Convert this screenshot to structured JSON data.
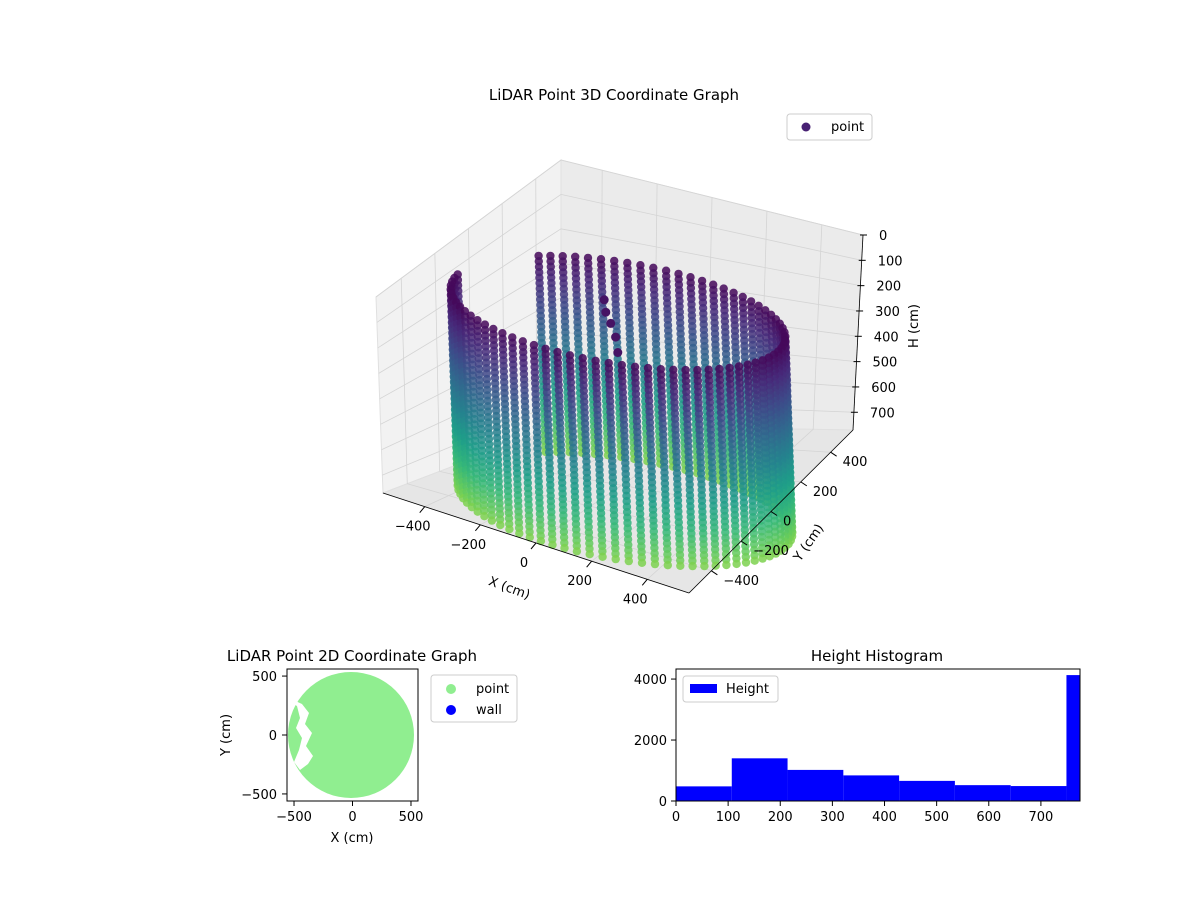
{
  "chart_data": [
    {
      "type": "scatter3d",
      "title": "LiDAR Point 3D Coordinate Graph",
      "xlabel": "X (cm)",
      "ylabel": "Y (cm)",
      "zlabel": "H (cm)",
      "x_ticks": [
        -400,
        -200,
        0,
        200,
        400
      ],
      "y_ticks": [
        -400,
        -200,
        0,
        200,
        400
      ],
      "z_ticks": [
        0,
        100,
        200,
        300,
        400,
        500,
        600,
        700
      ],
      "xlim": [
        -550,
        550
      ],
      "ylim": [
        -550,
        550
      ],
      "zlim": [
        0,
        770
      ],
      "z_inverted": true,
      "series": [
        {
          "name": "point",
          "color": "#440154",
          "colormap": "viridis"
        }
      ],
      "shape": "cylinder",
      "radius": 520,
      "height": 770,
      "legend_position": "top-right"
    },
    {
      "type": "scatter",
      "title": "LiDAR Point 2D Coordinate Graph",
      "xlabel": "X (cm)",
      "ylabel": "Y (cm)",
      "x_ticks": [
        -500,
        0,
        500
      ],
      "y_ticks": [
        500,
        0,
        -500
      ],
      "xlim": [
        -560,
        560
      ],
      "ylim": [
        -560,
        560
      ],
      "series": [
        {
          "name": "point",
          "color": "#90ee90"
        },
        {
          "name": "wall",
          "color": "#0000ff"
        }
      ],
      "legend_position": "outside-right"
    },
    {
      "type": "bar",
      "title": "Height Histogram",
      "series": [
        {
          "name": "Height",
          "color": "#0000ff"
        }
      ],
      "bins": [
        {
          "start": 0,
          "end": 107,
          "count": 480
        },
        {
          "start": 107,
          "end": 214,
          "count": 1400
        },
        {
          "start": 214,
          "end": 321,
          "count": 1020
        },
        {
          "start": 321,
          "end": 428,
          "count": 840
        },
        {
          "start": 428,
          "end": 535,
          "count": 660
        },
        {
          "start": 535,
          "end": 642,
          "count": 520
        },
        {
          "start": 642,
          "end": 749,
          "count": 490
        },
        {
          "start": 749,
          "end": 775,
          "count": 4130
        }
      ],
      "x_ticks": [
        0,
        100,
        200,
        300,
        400,
        500,
        600,
        700
      ],
      "y_ticks": [
        0,
        2000,
        4000
      ],
      "xlim": [
        0,
        775
      ],
      "ylim": [
        0,
        4330
      ],
      "legend_position": "top-left"
    }
  ]
}
